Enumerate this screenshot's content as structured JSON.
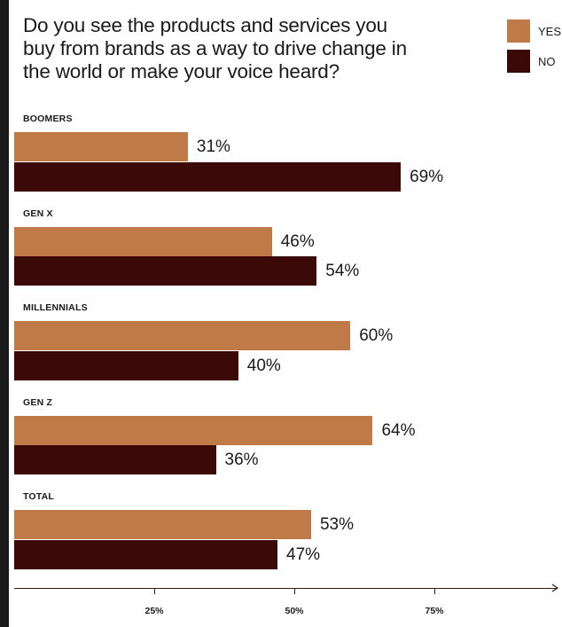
{
  "chart_data": {
    "type": "bar",
    "orientation": "horizontal",
    "title": "Do you see the products and services you buy from brands as a way to drive change in the world or make your voice heard?",
    "categories": [
      "BOOMERS",
      "GEN X",
      "MILLENNIALS",
      "GEN Z",
      "TOTAL"
    ],
    "series": [
      {
        "name": "YES",
        "color": "#c07a48",
        "values": [
          31,
          46,
          60,
          64,
          53
        ],
        "labels": [
          "31%",
          "46%",
          "60%",
          "64%",
          "53%"
        ]
      },
      {
        "name": "NO",
        "color": "#3b0a08",
        "values": [
          69,
          54,
          40,
          36,
          47
        ],
        "labels": [
          "69%",
          "54%",
          "40%",
          "36%",
          "47%"
        ]
      }
    ],
    "xlim": [
      0,
      100
    ],
    "xticks": [
      {
        "value": 25,
        "label": "25%"
      },
      {
        "value": 50,
        "label": "50%"
      },
      {
        "value": 75,
        "label": "75%"
      }
    ],
    "legend_position": "top-right",
    "grid": false
  }
}
